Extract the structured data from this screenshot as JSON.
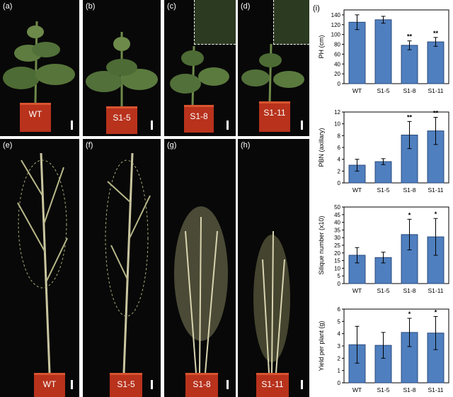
{
  "photos": [
    {
      "panel": "(a)",
      "pot_label": "WT"
    },
    {
      "panel": "(b)",
      "pot_label": "S1-5"
    },
    {
      "panel": "(c)",
      "pot_label": "S1-8"
    },
    {
      "panel": "(d)",
      "pot_label": "S1-11"
    },
    {
      "panel": "(e)",
      "pot_label": "WT"
    },
    {
      "panel": "(f)",
      "pot_label": "S1-5"
    },
    {
      "panel": "(g)",
      "pot_label": "S1-8"
    },
    {
      "panel": "(h)",
      "pot_label": "S1-11"
    }
  ],
  "charts_panel_label": "(i)",
  "colors": {
    "bar_fill": "#4f7fbf",
    "bar_stroke": "#2b4a7a",
    "photo_bg": "#080808",
    "pot": "#b8321c"
  },
  "chart_data": [
    {
      "type": "bar",
      "categories": [
        "WT",
        "S1-5",
        "S1-8",
        "S1-11"
      ],
      "values": [
        125,
        130,
        78,
        85
      ],
      "errors": [
        15,
        7,
        9,
        9
      ],
      "significance": [
        "",
        "",
        "**",
        "**"
      ],
      "ylabel": "PH (cm)",
      "ylim": [
        0,
        150
      ],
      "yticks": [
        0,
        20,
        40,
        60,
        80,
        100,
        120,
        140
      ]
    },
    {
      "type": "bar",
      "categories": [
        "WT",
        "S1-5",
        "S1-8",
        "S1-11"
      ],
      "values": [
        3.0,
        3.6,
        8.1,
        8.8
      ],
      "errors": [
        1.0,
        0.5,
        2.3,
        2.3
      ],
      "significance": [
        "",
        "",
        "**",
        "**"
      ],
      "ylabel": "PBN (axillary)",
      "ylim": [
        0,
        12
      ],
      "yticks": [
        0,
        2,
        4,
        6,
        8,
        10,
        12
      ]
    },
    {
      "type": "bar",
      "categories": [
        "WT",
        "S1-5",
        "S1-8",
        "S1-11"
      ],
      "values": [
        18.5,
        17,
        32,
        30.5
      ],
      "errors": [
        5,
        3.5,
        10,
        12
      ],
      "significance": [
        "",
        "",
        "*",
        "*"
      ],
      "ylabel": "Silique number (x10)",
      "ylim": [
        0,
        50
      ],
      "yticks": [
        0,
        5,
        10,
        15,
        20,
        25,
        30,
        35,
        40,
        45,
        50
      ]
    },
    {
      "type": "bar",
      "categories": [
        "WT",
        "S1-5",
        "S1-8",
        "S1-11"
      ],
      "values": [
        3.1,
        3.05,
        4.1,
        4.05
      ],
      "errors": [
        1.5,
        1.05,
        1.15,
        1.35
      ],
      "significance": [
        "",
        "",
        "*",
        "*"
      ],
      "ylabel": "Yield per plant (g)",
      "ylim": [
        0,
        6
      ],
      "yticks": [
        0,
        1,
        2,
        3,
        4,
        5,
        6
      ]
    }
  ]
}
